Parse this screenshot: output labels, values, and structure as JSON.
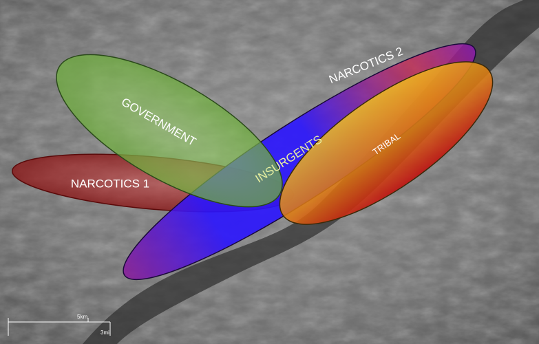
{
  "overlays": [
    {
      "label": "NARCOTICS 1"
    },
    {
      "label": "GOVERNMENT"
    },
    {
      "label": "NARCOTICS 2"
    },
    {
      "label": "TRIBAL"
    },
    {
      "label": "INSURGENTS"
    }
  ],
  "scale_bar": {
    "top_label": "5km",
    "bottom_label": "3mi"
  }
}
